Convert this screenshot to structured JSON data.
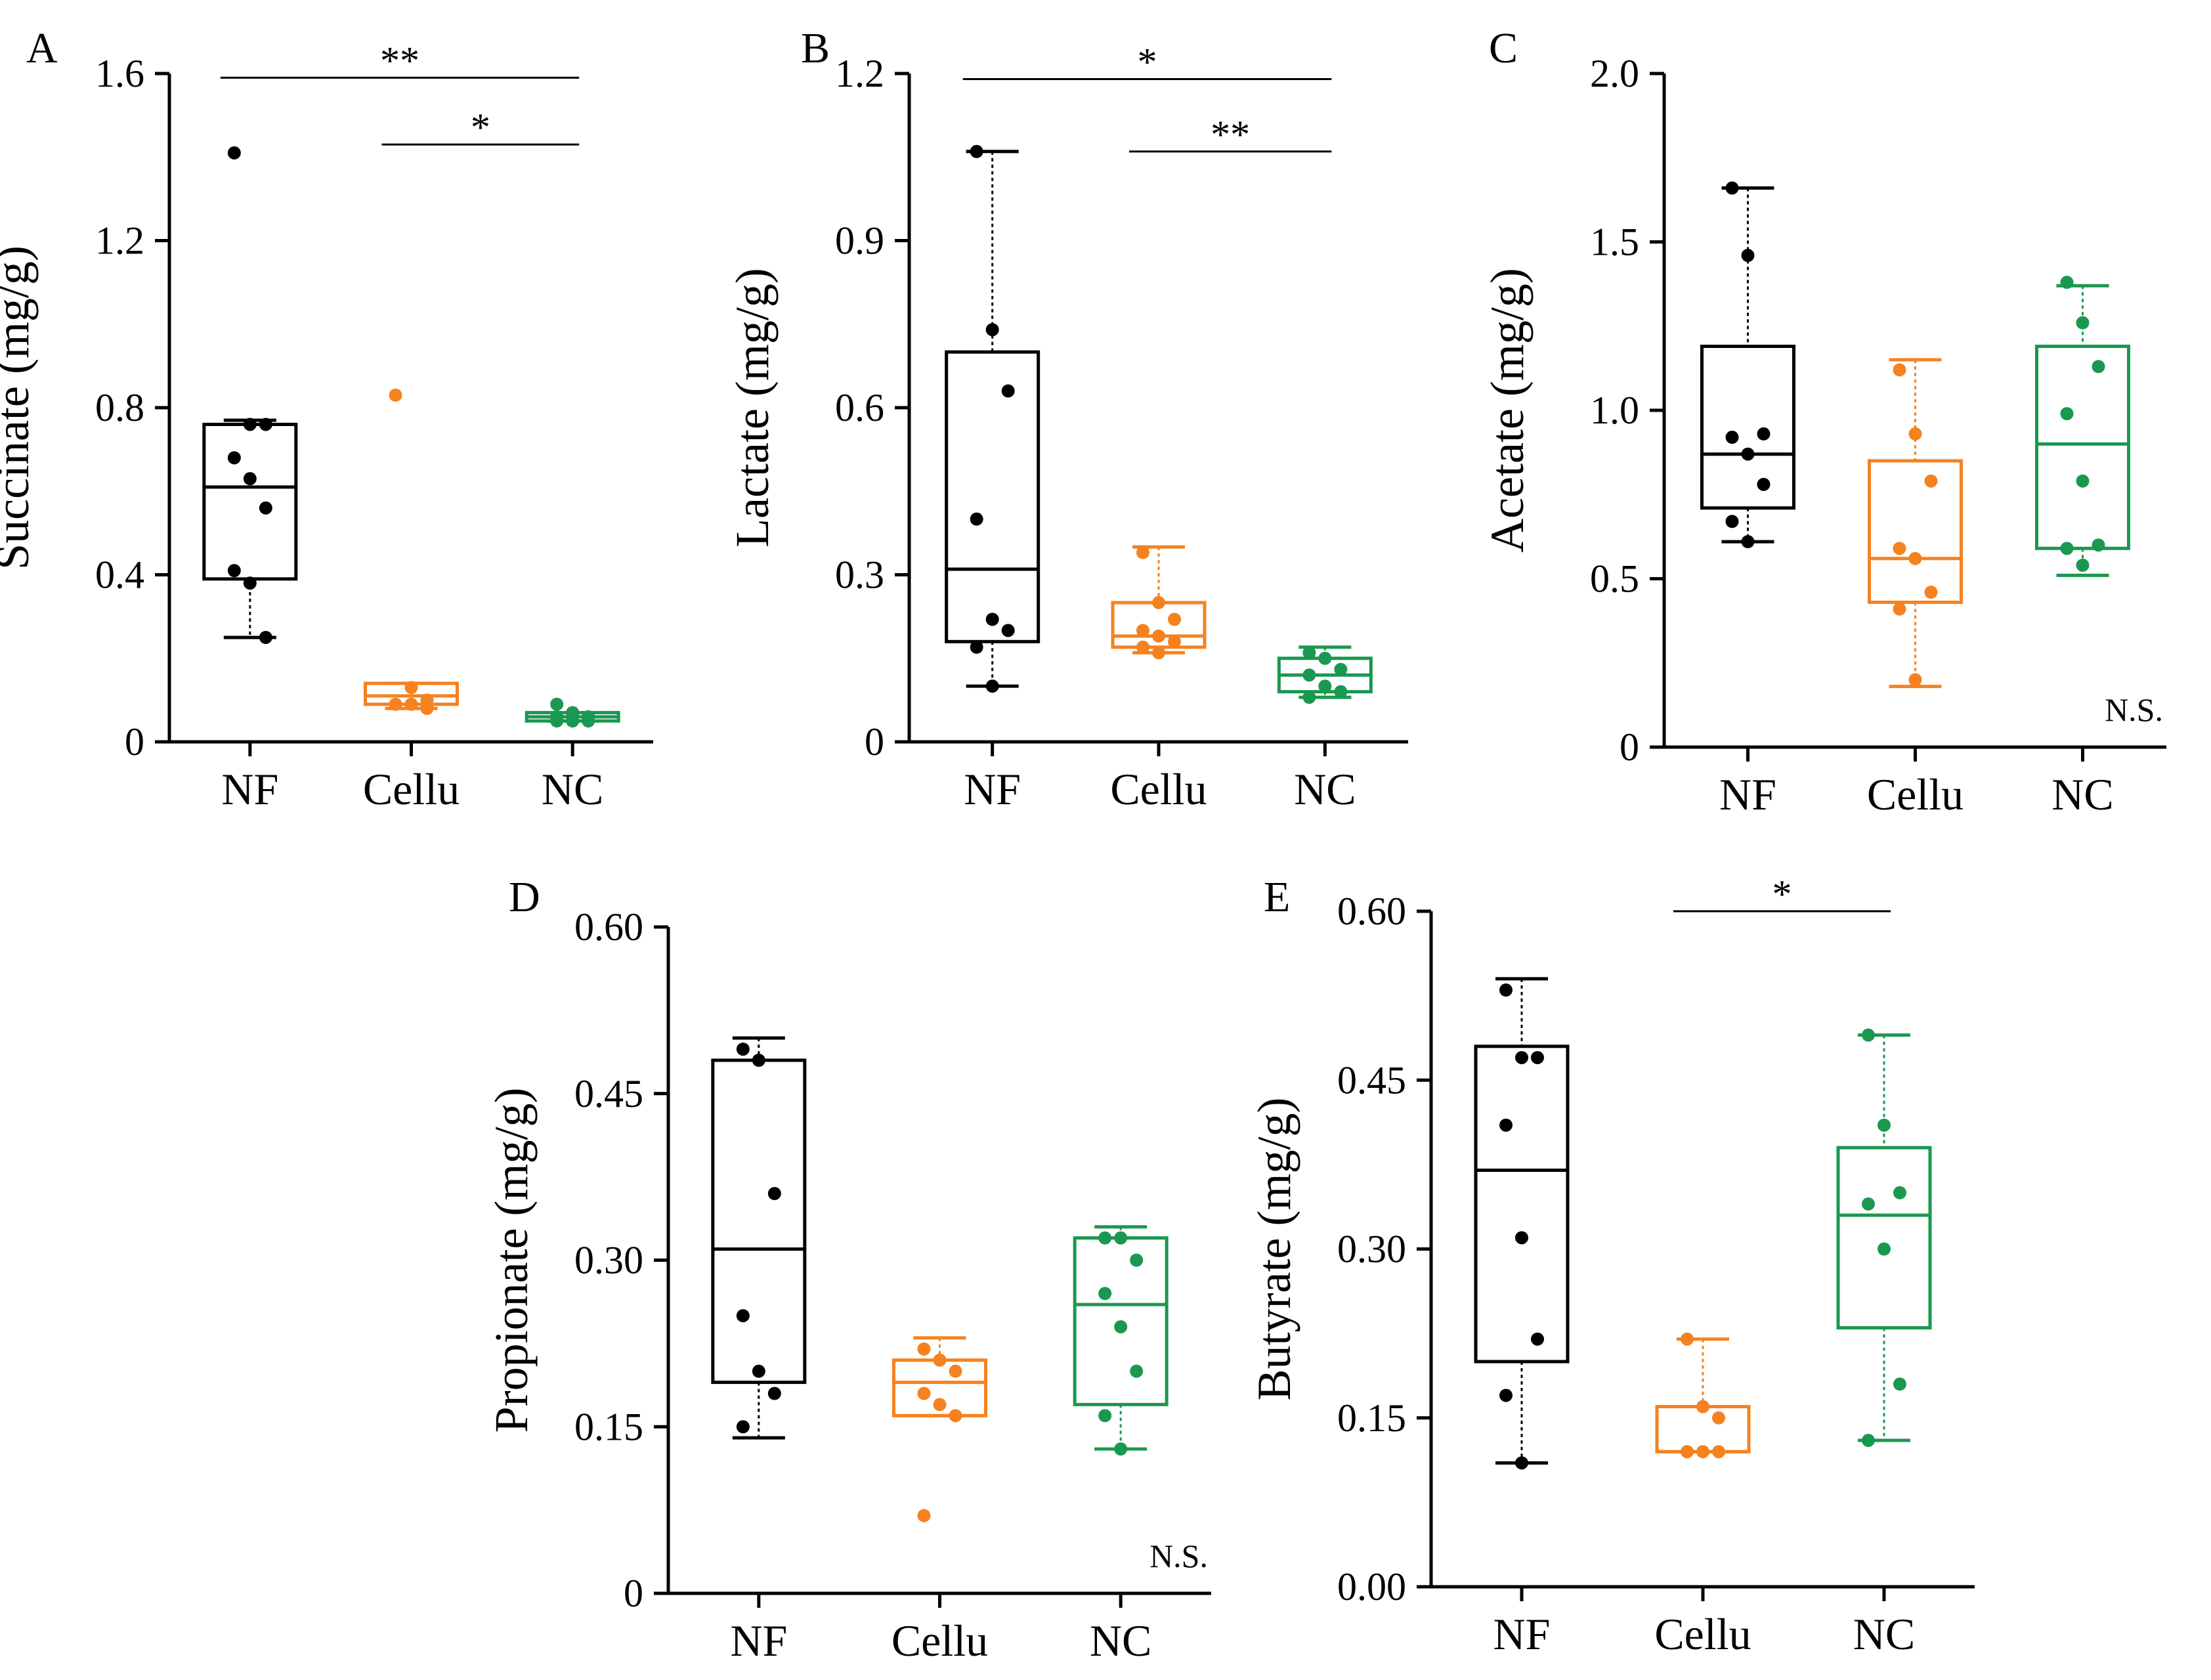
{
  "colors": {
    "NF": "#000000",
    "Cellu": "#F5821F",
    "NC": "#1A9850"
  },
  "chart_data": [
    {
      "id": "A",
      "panel_label": "A",
      "type": "box",
      "ylabel": "Succinate (mg/g)",
      "categories": [
        "NF",
        "Cellu",
        "NC"
      ],
      "ylim": [
        0,
        1.6
      ],
      "yticks": [
        0,
        0.4,
        0.8,
        1.2,
        1.6
      ],
      "ytick_labels": [
        "0",
        "0.4",
        "0.8",
        "1.2",
        "1.6"
      ],
      "boxes": [
        {
          "group": "NF",
          "q1": 0.39,
          "median": 0.61,
          "q3": 0.76,
          "whisker_low": 0.25,
          "whisker_high": 0.77,
          "points": [
            1.41,
            0.76,
            0.76,
            0.68,
            0.63,
            0.56,
            0.41,
            0.38,
            0.25
          ]
        },
        {
          "group": "Cellu",
          "q1": 0.09,
          "median": 0.11,
          "q3": 0.14,
          "whisker_low": 0.08,
          "whisker_high": 0.14,
          "points": [
            0.83,
            0.13,
            0.1,
            0.09,
            0.09,
            0.08
          ]
        },
        {
          "group": "NC",
          "q1": 0.05,
          "median": 0.06,
          "q3": 0.07,
          "whisker_low": 0.05,
          "whisker_high": 0.07,
          "points": [
            0.09,
            0.07,
            0.06,
            0.06,
            0.05,
            0.05,
            0.05
          ]
        }
      ],
      "significance": [
        {
          "from": "NF",
          "to": "NC",
          "y": 1.59,
          "label": "**"
        },
        {
          "from": "Cellu",
          "to": "NC",
          "y": 1.43,
          "label": "*"
        }
      ],
      "note": ""
    },
    {
      "id": "B",
      "panel_label": "B",
      "type": "box",
      "ylabel": "Lactate (mg/g)",
      "categories": [
        "NF",
        "Cellu",
        "NC"
      ],
      "ylim": [
        0,
        1.2
      ],
      "yticks": [
        0,
        0.3,
        0.6,
        0.9,
        1.2
      ],
      "ytick_labels": [
        "0",
        "0.3",
        "0.6",
        "0.9",
        "1.2"
      ],
      "boxes": [
        {
          "group": "NF",
          "q1": 0.18,
          "median": 0.31,
          "q3": 0.7,
          "whisker_low": 0.1,
          "whisker_high": 1.06,
          "points": [
            1.06,
            0.74,
            0.63,
            0.4,
            0.22,
            0.2,
            0.17,
            0.1
          ]
        },
        {
          "group": "Cellu",
          "q1": 0.17,
          "median": 0.19,
          "q3": 0.25,
          "whisker_low": 0.16,
          "whisker_high": 0.35,
          "points": [
            0.34,
            0.25,
            0.22,
            0.2,
            0.19,
            0.18,
            0.17,
            0.16
          ]
        },
        {
          "group": "NC",
          "q1": 0.09,
          "median": 0.12,
          "q3": 0.15,
          "whisker_low": 0.08,
          "whisker_high": 0.17,
          "points": [
            0.16,
            0.15,
            0.13,
            0.12,
            0.1,
            0.09,
            0.08
          ]
        }
      ],
      "significance": [
        {
          "from": "NF",
          "to": "NC",
          "y": 1.19,
          "label": "*"
        },
        {
          "from": "Cellu",
          "to": "NC",
          "y": 1.06,
          "label": "**"
        }
      ],
      "note": ""
    },
    {
      "id": "C",
      "panel_label": "C",
      "type": "box",
      "ylabel": "Acetate (mg/g)",
      "categories": [
        "NF",
        "Cellu",
        "NC"
      ],
      "ylim": [
        0,
        2.0
      ],
      "yticks": [
        0,
        0.5,
        1.0,
        1.5,
        2.0
      ],
      "ytick_labels": [
        "0",
        "0.5",
        "1.0",
        "1.5",
        "2.0"
      ],
      "boxes": [
        {
          "group": "NF",
          "q1": 0.71,
          "median": 0.87,
          "q3": 1.19,
          "whisker_low": 0.61,
          "whisker_high": 1.66,
          "points": [
            1.66,
            1.46,
            0.93,
            0.92,
            0.87,
            0.78,
            0.67,
            0.61
          ]
        },
        {
          "group": "Cellu",
          "q1": 0.43,
          "median": 0.56,
          "q3": 0.85,
          "whisker_low": 0.18,
          "whisker_high": 1.15,
          "points": [
            1.12,
            0.93,
            0.79,
            0.59,
            0.56,
            0.46,
            0.41,
            0.2
          ]
        },
        {
          "group": "NC",
          "q1": 0.59,
          "median": 0.9,
          "q3": 1.19,
          "whisker_low": 0.51,
          "whisker_high": 1.37,
          "points": [
            1.38,
            1.26,
            1.13,
            0.99,
            0.79,
            0.6,
            0.59,
            0.54
          ]
        }
      ],
      "significance": [],
      "note": "N.S."
    },
    {
      "id": "D",
      "panel_label": "D",
      "type": "box",
      "ylabel": "Propionate (mg/g)",
      "categories": [
        "NF",
        "Cellu",
        "NC"
      ],
      "ylim": [
        0,
        0.6
      ],
      "yticks": [
        0,
        0.15,
        0.3,
        0.45,
        0.6
      ],
      "ytick_labels": [
        "0",
        "0.15",
        "0.30",
        "0.45",
        "0.60"
      ],
      "boxes": [
        {
          "group": "NF",
          "q1": 0.19,
          "median": 0.31,
          "q3": 0.48,
          "whisker_low": 0.14,
          "whisker_high": 0.5,
          "points": [
            0.49,
            0.48,
            0.36,
            0.25,
            0.2,
            0.18,
            0.15
          ]
        },
        {
          "group": "Cellu",
          "q1": 0.16,
          "median": 0.19,
          "q3": 0.21,
          "whisker_low": 0.16,
          "whisker_high": 0.23,
          "points": [
            0.22,
            0.21,
            0.2,
            0.18,
            0.17,
            0.16,
            0.07
          ]
        },
        {
          "group": "NC",
          "q1": 0.17,
          "median": 0.26,
          "q3": 0.32,
          "whisker_low": 0.13,
          "whisker_high": 0.33,
          "points": [
            0.32,
            0.32,
            0.3,
            0.27,
            0.24,
            0.2,
            0.16,
            0.13
          ]
        }
      ],
      "significance": [],
      "note": "N.S."
    },
    {
      "id": "E",
      "panel_label": "E",
      "type": "box",
      "ylabel": "Butyrate (mg/g)",
      "categories": [
        "NF",
        "Cellu",
        "NC"
      ],
      "ylim": [
        0,
        0.6
      ],
      "yticks": [
        0,
        0.15,
        0.3,
        0.45,
        0.6
      ],
      "ytick_labels": [
        "0.00",
        "0.15",
        "0.30",
        "0.45",
        "0.60"
      ],
      "boxes": [
        {
          "group": "NF",
          "q1": 0.2,
          "median": 0.37,
          "q3": 0.48,
          "whisker_low": 0.11,
          "whisker_high": 0.54,
          "points": [
            0.53,
            0.47,
            0.47,
            0.41,
            0.31,
            0.22,
            0.17,
            0.11
          ]
        },
        {
          "group": "Cellu",
          "q1": 0.12,
          "median": 0.12,
          "q3": 0.16,
          "whisker_low": 0.12,
          "whisker_high": 0.22,
          "points": [
            0.22,
            0.16,
            0.15,
            0.12,
            0.12,
            0.12,
            0.12
          ]
        },
        {
          "group": "NC",
          "q1": 0.23,
          "median": 0.33,
          "q3": 0.39,
          "whisker_low": 0.13,
          "whisker_high": 0.49,
          "points": [
            0.49,
            0.41,
            0.35,
            0.34,
            0.3,
            0.18,
            0.13
          ]
        }
      ],
      "significance": [
        {
          "from": "Cellu",
          "to": "NC",
          "y": 0.6,
          "label": "*"
        }
      ],
      "note": ""
    }
  ]
}
